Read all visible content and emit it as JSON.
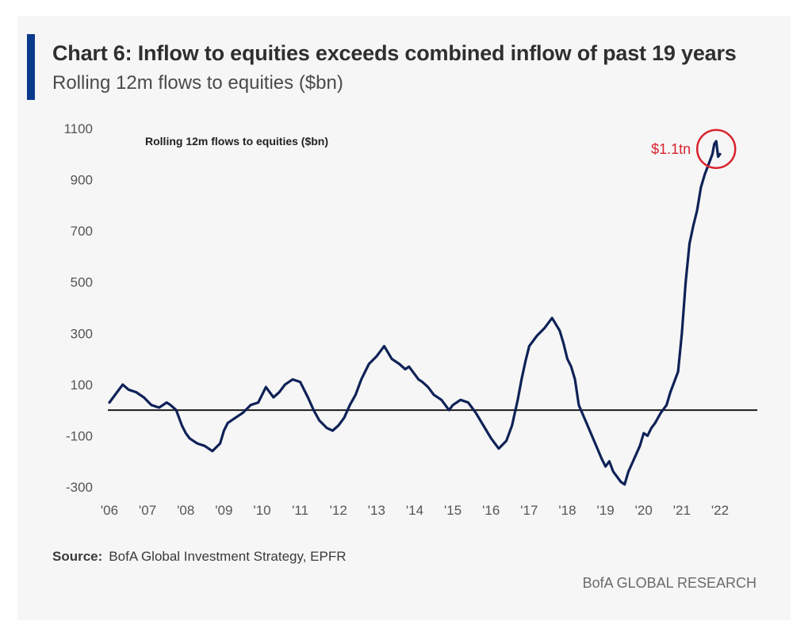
{
  "header": {
    "title": "Chart 6: Inflow to equities exceeds combined inflow of past 19 years",
    "subtitle": "Rolling 12m flows to equities ($bn)"
  },
  "footer": {
    "source_label": "Source:",
    "source_text": "BofA Global Investment Strategy, EPFR",
    "brand": "BofA GLOBAL RESEARCH"
  },
  "colors": {
    "line": "#0f2257",
    "annotation": "#d9232e",
    "accent": "#0b3a8c"
  },
  "chart_data": {
    "type": "line",
    "title": "Rolling 12m flows to equities ($bn)",
    "xlabel": "",
    "ylabel": "",
    "ylim": [
      -300,
      1100
    ],
    "xlim": [
      2006,
      2022.3
    ],
    "y_ticks": [
      "1100",
      "900",
      "700",
      "500",
      "300",
      "100",
      "-100",
      "-300"
    ],
    "y_tick_values": [
      1100,
      900,
      700,
      500,
      300,
      100,
      -100,
      -300
    ],
    "x_tick_labels": [
      "'06",
      "'07",
      "'08",
      "'09",
      "'10",
      "'11",
      "'12",
      "'13",
      "'14",
      "'15",
      "'16",
      "'17",
      "'18",
      "'19",
      "'20",
      "'21",
      "'22"
    ],
    "x_tick_values": [
      2006,
      2007,
      2008,
      2009,
      2010,
      2011,
      2012,
      2013,
      2014,
      2015,
      2016,
      2017,
      2018,
      2019,
      2020,
      2021,
      2022
    ],
    "zero_line": 0,
    "grid": false,
    "annotation": {
      "text": "$1.1tn",
      "x": 2021.9,
      "y": 1020
    },
    "series": [
      {
        "x": [
          2006.0,
          2006.2,
          2006.35,
          2006.5,
          2006.7,
          2006.9,
          2007.1,
          2007.3,
          2007.5,
          2007.6,
          2007.75,
          2007.9,
          2008.0,
          2008.1,
          2008.2,
          2008.3,
          2008.5,
          2008.7,
          2008.9,
          2009.0,
          2009.1,
          2009.2,
          2009.3,
          2009.5,
          2009.7,
          2009.9,
          2010.0,
          2010.1,
          2010.2,
          2010.3,
          2010.45,
          2010.6,
          2010.8,
          2011.0,
          2011.2,
          2011.35,
          2011.5,
          2011.7,
          2011.85,
          2012.0,
          2012.15,
          2012.3,
          2012.45,
          2012.6,
          2012.8,
          2013.0,
          2013.2,
          2013.4,
          2013.6,
          2013.75,
          2013.85,
          2014.0,
          2014.1,
          2014.2,
          2014.35,
          2014.5,
          2014.7,
          2014.9,
          2015.0,
          2015.2,
          2015.4,
          2015.6,
          2015.8,
          2016.0,
          2016.2,
          2016.4,
          2016.55,
          2016.7,
          2016.8,
          2016.9,
          2017.0,
          2017.2,
          2017.4,
          2017.6,
          2017.8,
          2017.9,
          2018.0,
          2018.1,
          2018.2,
          2018.3,
          2018.5,
          2018.7,
          2018.9,
          2019.0,
          2019.1,
          2019.2,
          2019.4,
          2019.5,
          2019.6,
          2019.75,
          2019.9,
          2020.0,
          2020.1,
          2020.2,
          2020.3,
          2020.45,
          2020.6,
          2020.7,
          2020.9,
          2021.0,
          2021.1,
          2021.2,
          2021.3,
          2021.4,
          2021.5,
          2021.6,
          2021.7,
          2021.8,
          2021.85,
          2021.9,
          2021.95,
          2022.0
        ],
        "y": [
          30,
          70,
          100,
          80,
          70,
          50,
          20,
          10,
          30,
          20,
          0,
          -60,
          -90,
          -110,
          -120,
          -130,
          -140,
          -160,
          -130,
          -80,
          -50,
          -40,
          -30,
          -10,
          20,
          30,
          60,
          90,
          70,
          50,
          70,
          100,
          120,
          110,
          50,
          0,
          -40,
          -70,
          -80,
          -60,
          -30,
          20,
          60,
          120,
          180,
          210,
          250,
          200,
          180,
          160,
          170,
          140,
          120,
          110,
          90,
          60,
          40,
          0,
          20,
          40,
          30,
          -10,
          -60,
          -110,
          -150,
          -120,
          -60,
          40,
          120,
          190,
          250,
          290,
          320,
          360,
          310,
          260,
          200,
          170,
          120,
          20,
          -50,
          -120,
          -190,
          -220,
          -200,
          -240,
          -280,
          -290,
          -240,
          -190,
          -140,
          -90,
          -100,
          -70,
          -50,
          -10,
          20,
          70,
          150,
          300,
          500,
          650,
          720,
          780,
          870,
          920,
          960,
          1000,
          1040,
          1050,
          990,
          1000
        ]
      }
    ]
  }
}
